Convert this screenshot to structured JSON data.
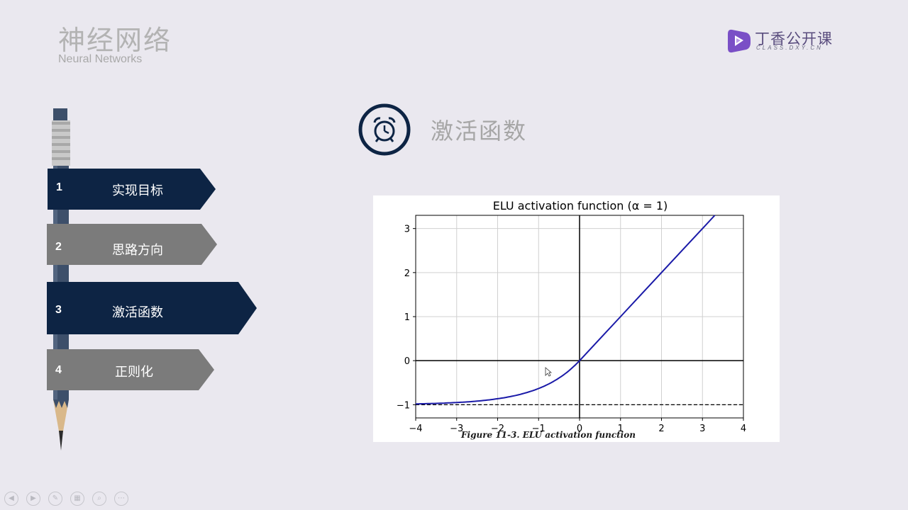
{
  "header": {
    "title": "神经网络",
    "subtitle": "Neural Networks"
  },
  "logo": {
    "text": "丁香公开课",
    "sub": "CLASS.DXY.CN",
    "color": "#7a4fc6"
  },
  "menu": {
    "items": [
      {
        "num": "1",
        "label": "实现目标",
        "state": "active"
      },
      {
        "num": "2",
        "label": "思路方向",
        "state": "inactive"
      },
      {
        "num": "3",
        "label": "激活函数",
        "state": "active"
      },
      {
        "num": "4",
        "label": "正则化",
        "state": "inactive"
      }
    ],
    "colors": {
      "active": "#0d2444",
      "inactive": "#7b7b7b"
    }
  },
  "section": {
    "title": "激活函数",
    "icon": "alarm-clock-icon"
  },
  "chart_data": {
    "type": "line",
    "title": "ELU activation function (α = 1)",
    "xlim": [
      -4,
      4
    ],
    "ylim": [
      -1.3,
      3.3
    ],
    "xticks": [
      "−4",
      "−3",
      "−2",
      "−1",
      "0",
      "1",
      "2",
      "3",
      "4"
    ],
    "yticks": [
      "−1",
      "0",
      "1",
      "2",
      "3"
    ],
    "series": [
      {
        "x": [
          -4,
          -3.5,
          -3,
          -2.5,
          -2,
          -1.5,
          -1,
          -0.5,
          0,
          0.5,
          1,
          1.5,
          2,
          2.5,
          3,
          3.3
        ],
        "values": [
          -0.98,
          -0.97,
          -0.95,
          -0.92,
          -0.86,
          -0.78,
          -0.63,
          -0.39,
          0,
          0.5,
          1,
          1.5,
          2,
          2.5,
          3,
          3.3
        ],
        "color": "#1a1aa8"
      }
    ],
    "asymptote_y": -1,
    "grid": true,
    "caption": "Figure 11-3. ELU activation function"
  },
  "toolbar": {
    "icons": [
      "prev-icon",
      "next-icon",
      "pen-icon",
      "slides-icon",
      "zoom-icon",
      "more-icon"
    ]
  }
}
